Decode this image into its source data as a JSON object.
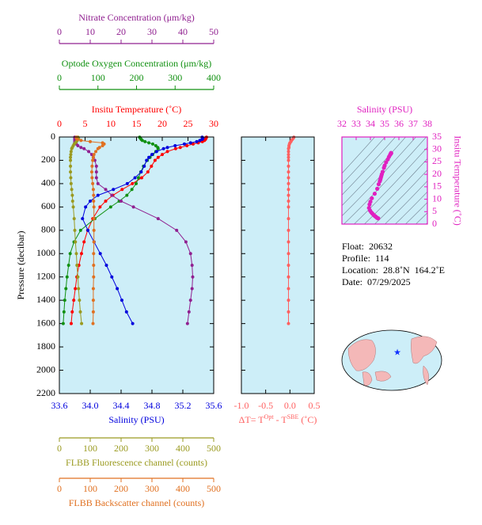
{
  "chart_data": [
    {
      "type": "line",
      "ylabel": "Pressure (decibar)",
      "ylim": [
        0,
        2200
      ],
      "y_reversed": true,
      "yticks": [
        0,
        200,
        400,
        600,
        800,
        1000,
        1200,
        1400,
        1600,
        1800,
        2000,
        2200
      ],
      "y": [
        2,
        10,
        20,
        30,
        40,
        50,
        60,
        75,
        90,
        100,
        125,
        150,
        175,
        200,
        250,
        300,
        350,
        400,
        450,
        500,
        550,
        600,
        700,
        800,
        900,
        1000,
        1100,
        1200,
        1300,
        1400,
        1500,
        1600
      ],
      "x_axes": [
        {
          "label": "Insitu Temperature (˚C)",
          "side": "top",
          "color": "#ff0000",
          "xlim": [
            0,
            30
          ],
          "xticks": [
            0,
            5,
            10,
            15,
            20,
            25,
            30
          ],
          "values": [
            28.6,
            28.5,
            28.4,
            28.2,
            27.8,
            27.0,
            26.0,
            24.8,
            23.5,
            22.6,
            21.0,
            20.0,
            19.2,
            18.6,
            17.9,
            17.2,
            16.0,
            14.2,
            12.2,
            10.4,
            9.0,
            7.9,
            6.5,
            5.5,
            4.8,
            4.3,
            3.8,
            3.4,
            3.1,
            2.8,
            2.5,
            2.3
          ]
        },
        {
          "label": "Optode Oxygen Concentration (μm/kg)",
          "side": "top",
          "color": "#109010",
          "xlim": [
            0,
            400
          ],
          "xticks": [
            0,
            100,
            200,
            300,
            400
          ],
          "values": [
            208,
            210,
            212,
            215,
            222,
            232,
            242,
            250,
            255,
            256,
            250,
            242,
            235,
            228,
            218,
            211,
            205,
            199,
            188,
            175,
            155,
            133,
            92,
            55,
            38,
            28,
            24,
            20,
            17,
            14,
            12,
            10
          ]
        },
        {
          "label": "Nitrate Concentration (μm/kg)",
          "side": "top",
          "color": "#902090",
          "xlim": [
            0,
            50
          ],
          "xticks": [
            0,
            10,
            20,
            30,
            40,
            50
          ],
          "values": [
            5,
            5,
            5,
            5,
            5,
            5,
            5.5,
            6,
            7,
            8,
            9.5,
            10.5,
            11,
            11.5,
            12,
            12,
            12,
            12.5,
            15,
            17,
            20,
            24,
            32,
            38,
            41,
            42.5,
            43,
            43.2,
            43,
            42.5,
            42,
            41.5
          ]
        },
        {
          "label": "Salinity (PSU)",
          "side": "bottom",
          "color": "#0000dd",
          "xlim": [
            33.6,
            35.6
          ],
          "xticks": [
            33.6,
            {
              "value": 34,
              "label": "34.0"
            },
            34.4,
            34.8,
            35.2,
            35.6
          ],
          "values": [
            35.45,
            35.46,
            35.45,
            35.42,
            35.38,
            35.3,
            35.22,
            35.1,
            35.0,
            34.95,
            34.86,
            34.8,
            34.76,
            34.73,
            34.7,
            34.66,
            34.58,
            34.48,
            34.3,
            34.1,
            34.0,
            33.94,
            33.9,
            33.97,
            34.05,
            34.13,
            34.21,
            34.28,
            34.35,
            34.41,
            34.47,
            34.55
          ]
        },
        {
          "label": "FLBB Fluorescence channel (counts)",
          "side": "bottom",
          "color": "#9a9a20",
          "xlim": [
            0,
            500
          ],
          "xticks": [
            0,
            100,
            200,
            300,
            400,
            500
          ],
          "values": [
            60,
            62,
            60,
            58,
            55,
            52,
            48,
            45,
            42,
            40,
            38,
            37,
            36,
            36,
            36,
            36,
            37,
            38,
            40,
            42,
            43,
            45,
            48,
            50,
            52,
            55,
            57,
            60,
            62,
            65,
            68,
            72
          ]
        },
        {
          "label": "FLBB Backscatter channel (counts)",
          "side": "bottom",
          "color": "#e07020",
          "xlim": [
            0,
            500
          ],
          "xticks": [
            0,
            100,
            200,
            300,
            400,
            500
          ],
          "values": [
            55,
            55,
            58,
            70,
            100,
            140,
            145,
            140,
            130,
            125,
            118,
            112,
            110,
            108,
            106,
            105,
            106,
            108,
            110,
            111,
            111,
            112,
            112,
            112,
            112,
            111,
            111,
            111,
            110,
            110,
            110,
            109
          ]
        }
      ]
    },
    {
      "type": "line",
      "xlabel_parts": [
        "ΔT= T",
        "Opt",
        " - T",
        "SBE",
        " (˚C)"
      ],
      "color": "#ff6060",
      "xlim": [
        -1,
        0.5
      ],
      "xticks": [
        {
          "value": -1,
          "label": "-1.0"
        },
        {
          "value": -0.5,
          "label": "-0.5"
        },
        {
          "value": 0,
          "label": "0.0"
        },
        0.5
      ],
      "ylim": [
        0,
        2200
      ],
      "y_reversed": true,
      "yticks": [
        0,
        200,
        400,
        600,
        800,
        1000,
        1200,
        1400,
        1600,
        1800,
        2000,
        2200
      ],
      "y": [
        2,
        10,
        20,
        30,
        40,
        50,
        60,
        75,
        90,
        100,
        125,
        150,
        175,
        200,
        250,
        300,
        350,
        400,
        450,
        500,
        550,
        600,
        700,
        800,
        900,
        1000,
        1100,
        1200,
        1300,
        1400,
        1500,
        1600
      ],
      "values": [
        0.08,
        0.07,
        0.05,
        0.03,
        0.02,
        0.0,
        -0.01,
        -0.02,
        -0.02,
        -0.03,
        -0.03,
        -0.03,
        -0.03,
        -0.03,
        -0.03,
        -0.03,
        -0.03,
        -0.03,
        -0.03,
        -0.03,
        -0.03,
        -0.03,
        -0.03,
        -0.03,
        -0.03,
        -0.03,
        -0.03,
        -0.03,
        -0.03,
        -0.03,
        -0.03,
        -0.03
      ]
    },
    {
      "type": "scatter",
      "xlabel": "Salinity (PSU)",
      "ylabel": "Insitu Temperature (˚C)",
      "color": "#e020c0",
      "xlim": [
        32,
        38
      ],
      "xticks": [
        32,
        33,
        34,
        35,
        36,
        37,
        38
      ],
      "ylim": [
        0,
        35
      ],
      "yticks": [
        0,
        5,
        10,
        15,
        20,
        25,
        30,
        35
      ],
      "x": [
        35.45,
        35.46,
        35.45,
        35.42,
        35.38,
        35.3,
        35.22,
        35.1,
        35.0,
        34.95,
        34.86,
        34.8,
        34.76,
        34.73,
        34.7,
        34.66,
        34.58,
        34.48,
        34.3,
        34.1,
        34.0,
        33.94,
        33.9,
        33.97,
        34.05,
        34.13,
        34.21,
        34.28,
        34.35,
        34.41,
        34.47,
        34.55
      ],
      "y": [
        28.6,
        28.5,
        28.4,
        28.2,
        27.8,
        27.0,
        26.0,
        24.8,
        23.5,
        22.6,
        21.0,
        20.0,
        19.2,
        18.6,
        17.9,
        17.2,
        16.0,
        14.2,
        12.2,
        10.4,
        9.0,
        7.9,
        6.5,
        5.5,
        4.8,
        4.3,
        3.8,
        3.4,
        3.1,
        2.8,
        2.5,
        2.3
      ]
    }
  ],
  "info": [
    "Float:  20632",
    "Profile:  114",
    "Location:  28.8˚N  164.2˚E",
    "Date:  07/29/2025"
  ]
}
